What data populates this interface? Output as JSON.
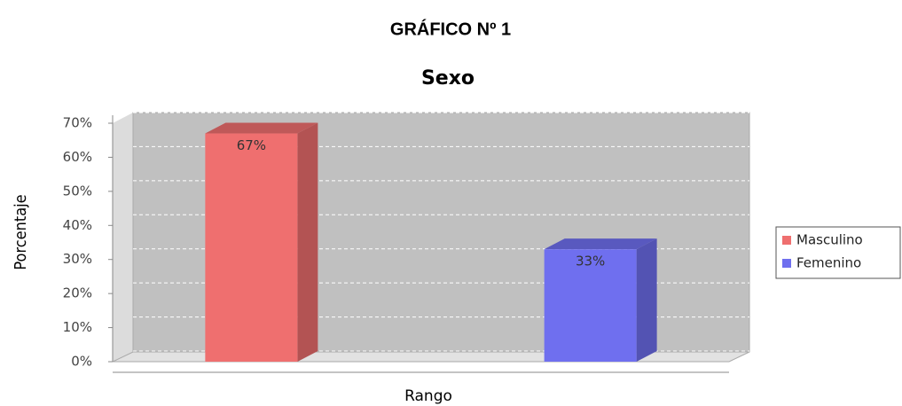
{
  "heading": "GRÁFICO Nº 1",
  "chart_data": {
    "type": "bar3d",
    "title": "Sexo",
    "x_label": "Rango",
    "y_label": "Porcentaje",
    "categories": [
      null
    ],
    "series": [
      {
        "name": "Masculino",
        "color": "#ef6f6f",
        "values": [
          67
        ],
        "value_labels": [
          "67%"
        ]
      },
      {
        "name": "Femenino",
        "color": "#6f6fef",
        "values": [
          33
        ],
        "value_labels": [
          "33%"
        ]
      }
    ],
    "ylim": [
      0,
      70
    ],
    "yticks": [
      {
        "value": 0,
        "label": "0%"
      },
      {
        "value": 10,
        "label": "10%"
      },
      {
        "value": 20,
        "label": "20%"
      },
      {
        "value": 30,
        "label": "30%"
      },
      {
        "value": 40,
        "label": "40%"
      },
      {
        "value": 50,
        "label": "50%"
      },
      {
        "value": 60,
        "label": "60%"
      },
      {
        "value": 70,
        "label": "70%"
      }
    ],
    "grid": true,
    "legend": "right"
  }
}
